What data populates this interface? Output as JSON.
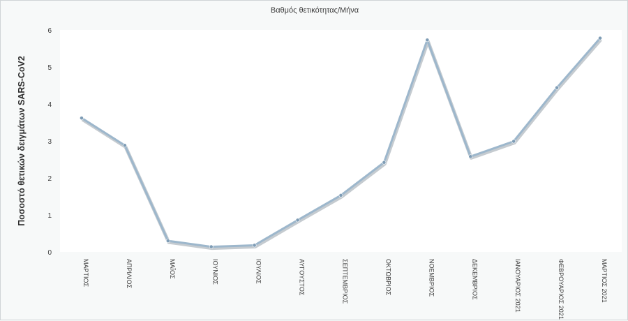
{
  "chart_data": {
    "type": "line",
    "title": "Βαθμός θετικότητας/Μήνα",
    "xlabel": "",
    "ylabel": "Ποσοστό θετικών δειγμάτων SARS-CoV2",
    "ylim": [
      0,
      6
    ],
    "yticks": [
      0,
      1,
      2,
      3,
      4,
      5,
      6
    ],
    "grid": false,
    "legend": "none",
    "categories": [
      "ΜΑΡΤΙΟΣ",
      "ΑΠΡΙΛΙΟΣ",
      "ΜΑΪΟΣ",
      "ΙΟΥΝΙΟΣ",
      "ΙΟΥΛΙΟΣ",
      "ΑΥΓΟΥΣΤΟΣ",
      "ΣΕΠΤΕΜΒΡΙΟΣ",
      "ΟΚΤΩΒΡΙΟΣ",
      "ΝΟΕΜΒΡΙΟΣ",
      "ΔΕΚΕΜΒΡΙΟΣ",
      "ΙΑΝΟΥΑΡΙΟΣ 2021",
      "ΦΕΒΡΟΥΑΡΙΟΣ 2021",
      "ΜΑΡΤΙΟΣ 2021"
    ],
    "series": [
      {
        "values": [
          3.62,
          2.88,
          0.3,
          0.14,
          0.18,
          0.86,
          1.53,
          2.42,
          5.73,
          2.58,
          2.99,
          4.44,
          5.78
        ]
      }
    ],
    "colors": {
      "line": "#9db7cc",
      "marker": "#7e9cb5",
      "plot_bg": "#ffffff",
      "page_bg": "#f7f9f9"
    }
  }
}
